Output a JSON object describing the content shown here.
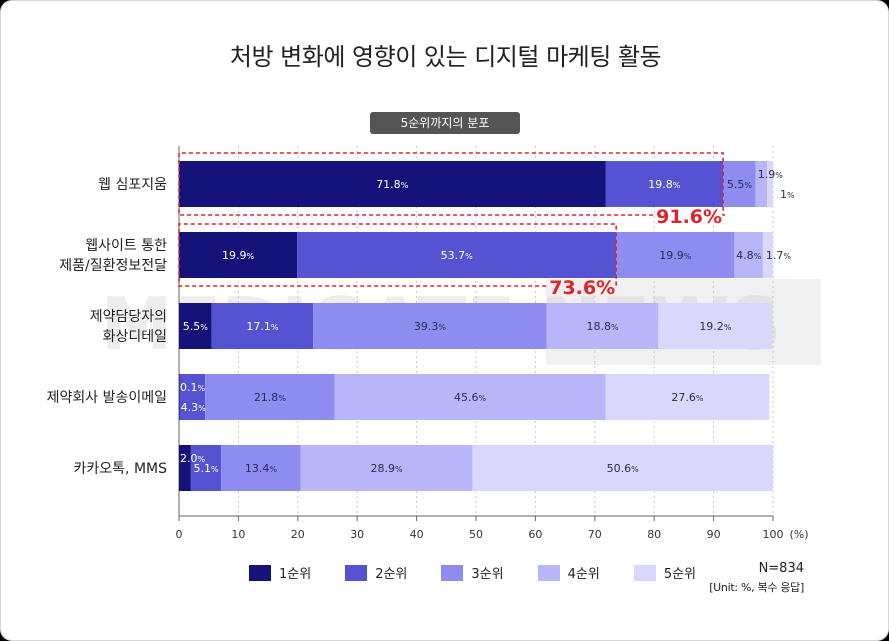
{
  "chart_data": {
    "type": "bar",
    "orientation": "horizontal",
    "stacked": true,
    "title": "처방 변화에 영향이 있는 디지털 마케팅 활동",
    "subtitle": "5순위까지의 분포",
    "categories": [
      [
        "웹 심포지움"
      ],
      [
        "웹사이트 통한",
        "제품/질환정보전달"
      ],
      [
        "제약담당자의",
        "화상디테일"
      ],
      [
        "제약회사 발송이메일"
      ],
      [
        "카카오톡, MMS"
      ]
    ],
    "series": [
      {
        "name": "1순위",
        "color": "#15127a",
        "values": [
          71.8,
          19.9,
          5.5,
          0.1,
          2.0
        ]
      },
      {
        "name": "2순위",
        "color": "#5653d3",
        "values": [
          19.8,
          53.7,
          17.1,
          4.3,
          5.1
        ]
      },
      {
        "name": "3순위",
        "color": "#8f8cef",
        "values": [
          5.5,
          19.9,
          39.3,
          21.8,
          13.4
        ]
      },
      {
        "name": "4순위",
        "color": "#b8b5f9",
        "values": [
          1.9,
          4.8,
          18.8,
          45.6,
          28.9
        ]
      },
      {
        "name": "5순위",
        "color": "#d9d8fc",
        "values": [
          1.0,
          1.7,
          19.2,
          27.6,
          50.6
        ]
      }
    ],
    "data_labels": [
      [
        "71.8",
        "19.8",
        "5.5",
        "1.9",
        "1"
      ],
      [
        "19.9",
        "53.7",
        "19.9",
        "4.8",
        "1.7"
      ],
      [
        "5.5",
        "17.1",
        "39.3",
        "18.8",
        "19.2"
      ],
      [
        "0.1",
        "4.3",
        "21.8",
        "45.6",
        "27.6"
      ],
      [
        "2.0",
        "5.1",
        "13.4",
        "28.9",
        "50.6"
      ]
    ],
    "label_unit": "%",
    "xlim": [
      0,
      100
    ],
    "xticks": [
      0,
      10,
      20,
      30,
      40,
      50,
      60,
      70,
      80,
      90,
      100
    ],
    "xunit": "(%)",
    "grid": "vertical dashed",
    "legend_placement": "bottom",
    "annotations": [
      {
        "row": 0,
        "cumulative": 91.6,
        "label": "91.6%"
      },
      {
        "row": 1,
        "cumulative": 73.6,
        "label": "73.6%"
      }
    ],
    "watermark": "MEDIGATE NEWS"
  },
  "notes": {
    "n": "N=834",
    "unit": "[Unit: %, 복수 응답]"
  }
}
